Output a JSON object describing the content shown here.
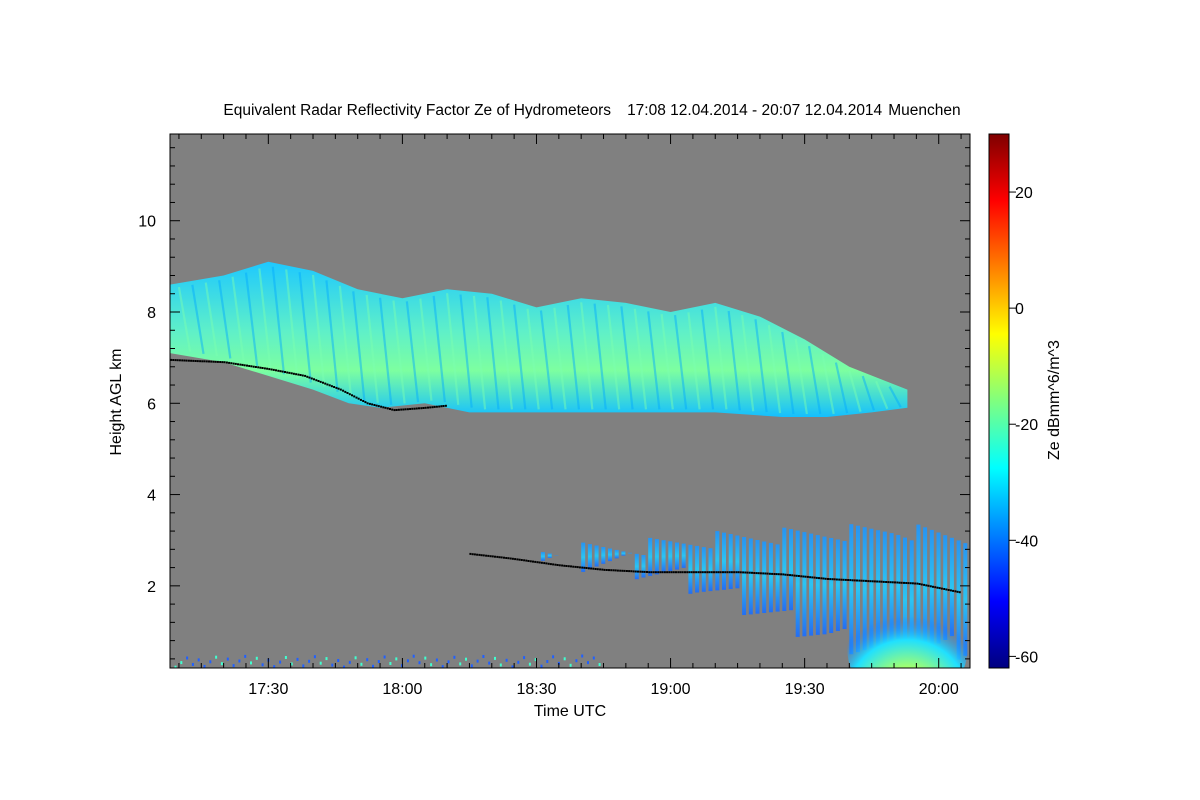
{
  "chart_data": {
    "type": "heatmap",
    "title": "Equivalent Radar Reflectivity Factor Ze of Hydrometeors",
    "period": "17:08 12.04.2014 - 20:07 12.04.2014",
    "location": "Muenchen",
    "xlabel": "Time UTC",
    "ylabel": "Height AGL km",
    "colorbar_label": "Ze dBmm^6/m^3",
    "x_range_minutes": [
      1028,
      1207
    ],
    "x_ticks": [
      {
        "minute": 1050,
        "label": "17:30"
      },
      {
        "minute": 1080,
        "label": "18:00"
      },
      {
        "minute": 1110,
        "label": "18:30"
      },
      {
        "minute": 1140,
        "label": "19:00"
      },
      {
        "minute": 1170,
        "label": "19:30"
      },
      {
        "minute": 1200,
        "label": "20:00"
      }
    ],
    "y_range_km": [
      0.2,
      11.9
    ],
    "y_ticks": [
      {
        "value": 2,
        "label": "2"
      },
      {
        "value": 4,
        "label": "4"
      },
      {
        "value": 6,
        "label": "6"
      },
      {
        "value": 8,
        "label": "8"
      },
      {
        "value": 10,
        "label": "10"
      }
    ],
    "colorbar_range": [
      -62,
      30
    ],
    "colorbar_ticks": [
      {
        "value": -60,
        "label": "-60"
      },
      {
        "value": -40,
        "label": "-40"
      },
      {
        "value": -20,
        "label": "-20"
      },
      {
        "value": 0,
        "label": "0"
      },
      {
        "value": 20,
        "label": "20"
      }
    ],
    "background_color": "#808080",
    "colormap": "jet",
    "upper_cloud_layer": {
      "start_minute": 1028,
      "end_minute": 1193,
      "top_km": [
        [
          1028,
          8.6
        ],
        [
          1040,
          8.8
        ],
        [
          1050,
          9.1
        ],
        [
          1060,
          8.9
        ],
        [
          1070,
          8.5
        ],
        [
          1080,
          8.3
        ],
        [
          1090,
          8.5
        ],
        [
          1100,
          8.4
        ],
        [
          1110,
          8.1
        ],
        [
          1120,
          8.3
        ],
        [
          1130,
          8.2
        ],
        [
          1140,
          8.0
        ],
        [
          1150,
          8.2
        ],
        [
          1160,
          7.9
        ],
        [
          1170,
          7.4
        ],
        [
          1180,
          6.8
        ],
        [
          1193,
          6.3
        ]
      ],
      "base_km": [
        [
          1028,
          7.1
        ],
        [
          1040,
          6.9
        ],
        [
          1050,
          6.6
        ],
        [
          1060,
          6.3
        ],
        [
          1068,
          6.0
        ],
        [
          1075,
          5.9
        ],
        [
          1085,
          6.0
        ],
        [
          1095,
          5.8
        ],
        [
          1110,
          5.8
        ],
        [
          1130,
          5.8
        ],
        [
          1150,
          5.8
        ],
        [
          1165,
          5.7
        ],
        [
          1175,
          5.7
        ],
        [
          1185,
          5.8
        ],
        [
          1193,
          5.9
        ]
      ],
      "typical_ze": -25,
      "max_ze": -15
    },
    "lower_cloud_layer": {
      "start_minute": 1111,
      "end_minute": 1207,
      "top_km": [
        [
          1111,
          2.9
        ],
        [
          1130,
          3.0
        ],
        [
          1150,
          3.2
        ],
        [
          1170,
          3.3
        ],
        [
          1190,
          3.4
        ],
        [
          1207,
          3.2
        ]
      ],
      "base_km": [
        [
          1111,
          2.4
        ],
        [
          1130,
          2.2
        ],
        [
          1145,
          1.8
        ],
        [
          1160,
          1.2
        ],
        [
          1175,
          0.6
        ],
        [
          1190,
          0.3
        ],
        [
          1207,
          0.4
        ]
      ],
      "typical_ze": -38,
      "precip_max_ze": 0
    },
    "detected_cloud_base_km": [
      [
        1028,
        6.95
      ],
      [
        1040,
        6.9
      ],
      [
        1050,
        6.75
      ],
      [
        1058,
        6.6
      ],
      [
        1066,
        6.3
      ],
      [
        1072,
        6.0
      ],
      [
        1078,
        5.85
      ],
      [
        1085,
        5.9
      ],
      [
        1090,
        5.95
      ],
      [
        1095,
        2.7
      ],
      [
        1104,
        2.6
      ],
      [
        1115,
        2.45
      ],
      [
        1125,
        2.35
      ],
      [
        1135,
        2.3
      ],
      [
        1145,
        2.3
      ],
      [
        1155,
        2.3
      ],
      [
        1165,
        2.25
      ],
      [
        1175,
        2.15
      ],
      [
        1185,
        2.1
      ],
      [
        1195,
        2.05
      ],
      [
        1205,
        1.85
      ]
    ]
  }
}
